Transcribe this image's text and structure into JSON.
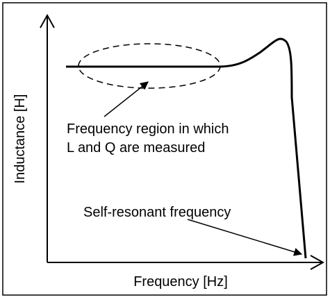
{
  "axes": {
    "y_label": "Inductance [H]",
    "x_label": "Frequency [Hz]"
  },
  "annotations": {
    "region_line_1": "Frequency region in which",
    "region_line_2": "L and Q are measured",
    "resonance": "Self-resonant frequency"
  }
}
